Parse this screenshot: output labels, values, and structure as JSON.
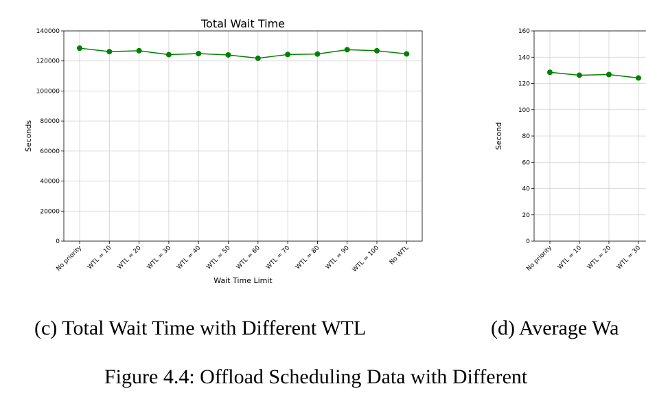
{
  "chart_data": [
    {
      "type": "line",
      "title": "Total Wait Time",
      "x_label": "Wait Time Limit",
      "y_label": "Seconds",
      "categories": [
        "No priority",
        "WTL = 10",
        "WTL = 20",
        "WTL = 30",
        "WTL = 40",
        "WTL = 50",
        "WTL = 60",
        "WTL = 70",
        "WTL = 80",
        "WTL = 90",
        "WTL = 100",
        "No WTL"
      ],
      "series": [
        {
          "name": "Total Wait Time",
          "color": "#008000",
          "values": [
            128500,
            126200,
            126800,
            124200,
            124900,
            124000,
            121800,
            124300,
            124600,
            127500,
            126800,
            124700
          ]
        }
      ],
      "ylim": [
        0,
        140000
      ],
      "yticks": [
        0,
        20000,
        40000,
        60000,
        80000,
        100000,
        120000,
        140000
      ],
      "grid": true
    },
    {
      "type": "line",
      "y_label": "Second",
      "categories": [
        "No priority",
        "WTL = 10",
        "WTL = 20",
        "WTL = 30"
      ],
      "series": [
        {
          "name": "Average Wait Time",
          "color": "#008000",
          "values": [
            128.5,
            126.3,
            126.8,
            124.2
          ]
        }
      ],
      "ylim": [
        0,
        160
      ],
      "yticks": [
        0,
        20,
        40,
        60,
        80,
        100,
        120,
        140,
        160
      ],
      "grid": true
    }
  ],
  "subcaptions": [
    "(c) Total Wait Time with Different WTL",
    "(d) Average Wa"
  ],
  "figure_caption": "Figure 4.4: Offload Scheduling Data with Different"
}
